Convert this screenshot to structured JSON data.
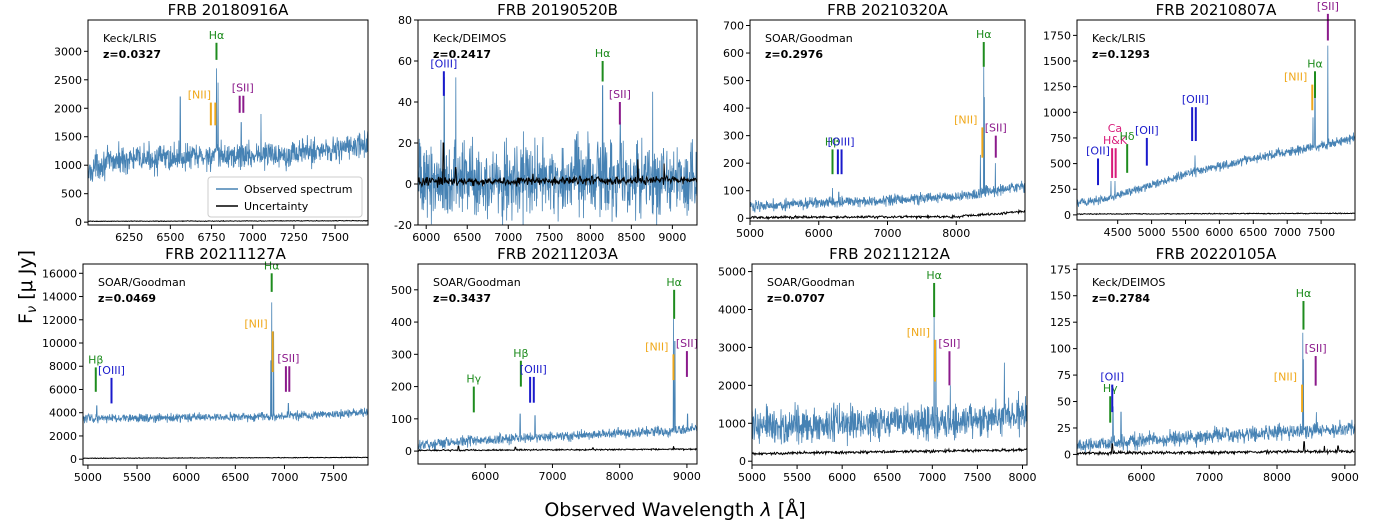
{
  "figure": {
    "ylabel": "F",
    "ylabel_sub": "ν",
    "ylabel_unit": " [μ Jy]",
    "xlabel_main": "Observed Wavelength ",
    "xlabel_sym": "λ",
    "xlabel_unit": " [Å]"
  },
  "legend": {
    "observed": "Observed spectrum",
    "uncertainty": "Uncertainty"
  },
  "colors": {
    "spectrum": "#4682b4",
    "uncertainty": "#000000",
    "balmer": "#1e8c1e",
    "nii": "#f0a81a",
    "sii": "#8b1a8b",
    "oiii": "#1a1acc",
    "cahk": "#d81b7a"
  },
  "chart_data": [
    {
      "type": "line",
      "title": "FRB 20180916A",
      "instrument": "Keck/LRIS",
      "redshift": "z=0.0327",
      "xlim": [
        6000,
        7700
      ],
      "ylim": [
        -50,
        3550
      ],
      "xticks": [
        6250,
        6500,
        6750,
        7000,
        7250,
        7500
      ],
      "yticks": [
        0,
        500,
        1000,
        1500,
        2000,
        2500,
        3000
      ],
      "legend_position": "lower-right",
      "spectrum": {
        "baseline": [
          [
            6000,
            850
          ],
          [
            6050,
            1000
          ],
          [
            6200,
            1100
          ],
          [
            7200,
            1200
          ],
          [
            7700,
            1350
          ]
        ],
        "noise": 170,
        "peaks": [
          [
            6560,
            2200
          ],
          [
            6780,
            2700
          ],
          [
            6790,
            2450
          ],
          [
            6930,
            1750
          ],
          [
            7050,
            1900
          ]
        ]
      },
      "uncertainty": {
        "baseline": [
          [
            6000,
            15
          ],
          [
            7700,
            25
          ]
        ],
        "noise": 4,
        "peaks": []
      },
      "lines": [
        {
          "label": "Hα",
          "color": "balmer",
          "x": [
            6780
          ],
          "y": [
            2850,
            3150
          ]
        },
        {
          "label": "[NII]",
          "color": "nii",
          "x": [
            6755,
            6800
          ],
          "y": [
            1700,
            2100
          ],
          "label_side": "left"
        },
        {
          "label": "[SII]",
          "color": "sii",
          "x": [
            6930,
            6950
          ],
          "y": [
            1920,
            2220
          ]
        }
      ]
    },
    {
      "type": "line",
      "title": "FRB 20190520B",
      "instrument": "Keck/DEIMOS",
      "redshift": "z=0.2417",
      "xlim": [
        5900,
        9300
      ],
      "ylim": [
        -20,
        80
      ],
      "xticks": [
        6000,
        6500,
        7000,
        7500,
        8000,
        8500,
        9000
      ],
      "yticks": [
        -20,
        0,
        20,
        40,
        60,
        80
      ],
      "spectrum": {
        "baseline": [
          [
            5900,
            2
          ],
          [
            9300,
            3
          ]
        ],
        "noise": 13,
        "peaks": [
          [
            6220,
            52
          ],
          [
            6360,
            52
          ],
          [
            8150,
            48
          ],
          [
            8365,
            30
          ],
          [
            8760,
            45
          ]
        ]
      },
      "uncertainty": {
        "baseline": [
          [
            5900,
            1
          ],
          [
            9300,
            2
          ]
        ],
        "noise": 1.5,
        "peaks": [
          [
            6210,
            20
          ],
          [
            6360,
            8
          ],
          [
            7300,
            5
          ],
          [
            8580,
            12
          ],
          [
            8900,
            10
          ]
        ]
      },
      "lines": [
        {
          "label": "[OIII]",
          "color": "oiii",
          "x": [
            6215
          ],
          "y": [
            43,
            55
          ]
        },
        {
          "label": "Hα",
          "color": "balmer",
          "x": [
            8150
          ],
          "y": [
            50,
            60
          ]
        },
        {
          "label": "[SII]",
          "color": "sii",
          "x": [
            8360
          ],
          "y": [
            29,
            40
          ]
        }
      ]
    },
    {
      "type": "line",
      "title": "FRB 20210320A",
      "instrument": "SOAR/Goodman",
      "redshift": "z=0.2976",
      "xlim": [
        5000,
        9000
      ],
      "ylim": [
        -10,
        720
      ],
      "xticks": [
        5000,
        6000,
        7000,
        8000
      ],
      "yticks": [
        0,
        100,
        200,
        300,
        400,
        500,
        600,
        700
      ],
      "spectrum": {
        "baseline": [
          [
            5000,
            45
          ],
          [
            7000,
            65
          ],
          [
            8000,
            80
          ],
          [
            9000,
            115
          ]
        ],
        "noise": 14,
        "peaks": [
          [
            6200,
            110
          ],
          [
            6290,
            95
          ],
          [
            8350,
            230
          ],
          [
            8400,
            550
          ],
          [
            8410,
            440
          ],
          [
            8570,
            200
          ]
        ]
      },
      "uncertainty": {
        "baseline": [
          [
            5000,
            3
          ],
          [
            8000,
            6
          ],
          [
            8500,
            15
          ],
          [
            9000,
            25
          ]
        ],
        "noise": 3,
        "peaks": []
      },
      "lines": [
        {
          "label": "Hβ",
          "color": "balmer",
          "x": [
            6200
          ],
          "y": [
            160,
            250
          ]
        },
        {
          "label": "[OIII]",
          "color": "oiii",
          "x": [
            6300,
            6350
          ],
          "y": [
            160,
            250
          ]
        },
        {
          "label": "[NII]",
          "color": "nii",
          "x": [
            8380
          ],
          "y": [
            220,
            330
          ],
          "label_side": "left"
        },
        {
          "label": "Hα",
          "color": "balmer",
          "x": [
            8400
          ],
          "y": [
            550,
            640
          ]
        },
        {
          "label": "[SII]",
          "color": "sii",
          "x": [
            8575
          ],
          "y": [
            220,
            300
          ]
        }
      ]
    },
    {
      "type": "line",
      "title": "FRB 20210807A",
      "instrument": "Keck/LRIS",
      "redshift": "z=0.1293",
      "xlim": [
        3900,
        8000
      ],
      "ylim": [
        -50,
        1900
      ],
      "xticks": [
        4500,
        5000,
        5500,
        6000,
        6500,
        7000,
        7500
      ],
      "yticks": [
        0,
        250,
        500,
        750,
        1000,
        1250,
        1500,
        1750
      ],
      "spectrum": {
        "baseline": [
          [
            3900,
            120
          ],
          [
            4300,
            150
          ],
          [
            4800,
            250
          ],
          [
            5500,
            400
          ],
          [
            6500,
            550
          ],
          [
            7300,
            650
          ],
          [
            8000,
            750
          ]
        ],
        "noise": 32,
        "peaks": [
          [
            4400,
            330
          ],
          [
            4460,
            330
          ],
          [
            5640,
            580
          ],
          [
            7380,
            950
          ],
          [
            7410,
            1200
          ],
          [
            7600,
            1650
          ]
        ]
      },
      "uncertainty": {
        "baseline": [
          [
            3900,
            8
          ],
          [
            8000,
            15
          ]
        ],
        "noise": 3,
        "peaks": []
      },
      "lines": [
        {
          "label": "[OII]",
          "color": "oiii",
          "x": [
            4210
          ],
          "y": [
            290,
            550
          ]
        },
        {
          "label": "Ca\nH&K",
          "color": "cahk",
          "x": [
            4440,
            4480
          ],
          "y": [
            360,
            650
          ]
        },
        {
          "label": "Hδ",
          "color": "balmer",
          "x": [
            4640
          ],
          "y": [
            410,
            690
          ]
        },
        {
          "label": "[OII]",
          "color": "oiii",
          "x": [
            4930
          ],
          "y": [
            480,
            750
          ]
        },
        {
          "label": "[OIII]",
          "color": "oiii",
          "x": [
            5620,
            5670
          ],
          "y": [
            720,
            1050
          ]
        },
        {
          "label": "[NII]",
          "color": "nii",
          "x": [
            7370
          ],
          "y": [
            1020,
            1270
          ],
          "label_side": "left"
        },
        {
          "label": "Hα",
          "color": "balmer",
          "x": [
            7410
          ],
          "y": [
            1140,
            1400
          ]
        },
        {
          "label": "[SII]",
          "color": "sii",
          "x": [
            7600
          ],
          "y": [
            1700,
            1960
          ]
        }
      ]
    },
    {
      "type": "line",
      "title": "FRB 20211127A",
      "instrument": "SOAR/Goodman",
      "redshift": "z=0.0469",
      "xlim": [
        4950,
        7850
      ],
      "ylim": [
        -500,
        16800
      ],
      "xticks": [
        5000,
        5500,
        6000,
        6500,
        7000,
        7500
      ],
      "yticks": [
        0,
        2000,
        4000,
        6000,
        8000,
        10000,
        12000,
        14000,
        16000
      ],
      "spectrum": {
        "baseline": [
          [
            4950,
            3500
          ],
          [
            6000,
            3600
          ],
          [
            7000,
            3700
          ],
          [
            7850,
            4000
          ]
        ],
        "noise": 260,
        "peaks": [
          [
            5090,
            4600
          ],
          [
            6860,
            8500
          ],
          [
            6870,
            13500
          ],
          [
            6890,
            11000
          ],
          [
            7040,
            4800
          ]
        ]
      },
      "uncertainty": {
        "baseline": [
          [
            4950,
            80
          ],
          [
            7850,
            150
          ]
        ],
        "noise": 20,
        "peaks": []
      },
      "lines": [
        {
          "label": "Hβ",
          "color": "balmer",
          "x": [
            5080
          ],
          "y": [
            5800,
            7900
          ]
        },
        {
          "label": "[OIII]",
          "color": "oiii",
          "x": [
            5240
          ],
          "y": [
            4800,
            7000
          ]
        },
        {
          "label": "[NII]",
          "color": "nii",
          "x": [
            6880
          ],
          "y": [
            7500,
            11000
          ],
          "label_side": "left"
        },
        {
          "label": "Hα",
          "color": "balmer",
          "x": [
            6870
          ],
          "y": [
            14400,
            16000
          ]
        },
        {
          "label": "[SII]",
          "color": "sii",
          "x": [
            7030,
            7050
          ],
          "y": [
            5800,
            8000
          ]
        }
      ]
    },
    {
      "type": "line",
      "title": "FRB 20211203A",
      "instrument": "SOAR/Goodman",
      "redshift": "z=0.3437",
      "xlim": [
        5000,
        9150
      ],
      "ylim": [
        -40,
        580
      ],
      "xticks": [
        6000,
        7000,
        8000,
        9000
      ],
      "yticks": [
        0,
        100,
        200,
        300,
        400,
        500
      ],
      "spectrum": {
        "baseline": [
          [
            5000,
            20
          ],
          [
            6000,
            35
          ],
          [
            7000,
            45
          ],
          [
            8000,
            55
          ],
          [
            9000,
            65
          ],
          [
            9150,
            70
          ]
        ],
        "noise": 11,
        "peaks": [
          [
            6520,
            115
          ],
          [
            6740,
            110
          ],
          [
            8800,
            410
          ],
          [
            8820,
            340
          ],
          [
            9010,
            115
          ]
        ]
      },
      "uncertainty": {
        "baseline": [
          [
            5000,
            2
          ],
          [
            9150,
            6
          ]
        ],
        "noise": 1.5,
        "peaks": [
          [
            5600,
            15
          ],
          [
            6450,
            12
          ],
          [
            7600,
            10
          ],
          [
            8800,
            15
          ]
        ]
      },
      "lines": [
        {
          "label": "Hγ",
          "color": "balmer",
          "x": [
            5830
          ],
          "y": [
            120,
            200
          ]
        },
        {
          "label": "Hβ",
          "color": "balmer",
          "x": [
            6530
          ],
          "y": [
            200,
            280
          ]
        },
        {
          "label": "[OIII]",
          "color": "oiii",
          "x": [
            6690,
            6740
          ],
          "y": [
            150,
            230
          ]
        },
        {
          "label": "[NII]",
          "color": "nii",
          "x": [
            8800
          ],
          "y": [
            220,
            300
          ],
          "label_side": "left"
        },
        {
          "label": "Hα",
          "color": "balmer",
          "x": [
            8810
          ],
          "y": [
            410,
            500
          ]
        },
        {
          "label": "[SII]",
          "color": "sii",
          "x": [
            9000
          ],
          "y": [
            230,
            310
          ]
        }
      ]
    },
    {
      "type": "line",
      "title": "FRB 20211212A",
      "instrument": "SOAR/Goodman",
      "redshift": "z=0.0707",
      "xlim": [
        5000,
        8050
      ],
      "ylim": [
        -100,
        5200
      ],
      "xticks": [
        5000,
        5500,
        6000,
        6500,
        7000,
        7500,
        8000
      ],
      "yticks": [
        0,
        1000,
        2000,
        3000,
        4000,
        5000
      ],
      "spectrum": {
        "baseline": [
          [
            5000,
            900
          ],
          [
            6500,
            1000
          ],
          [
            7500,
            1100
          ],
          [
            8050,
            1250
          ]
        ],
        "noise": 330,
        "peaks": [
          [
            7020,
            3900
          ],
          [
            7040,
            3200
          ],
          [
            7200,
            2000
          ],
          [
            7800,
            2600
          ]
        ]
      },
      "uncertainty": {
        "baseline": [
          [
            5000,
            200
          ],
          [
            8050,
            300
          ]
        ],
        "noise": 25,
        "peaks": []
      },
      "lines": [
        {
          "label": "[NII]",
          "color": "nii",
          "x": [
            7030
          ],
          "y": [
            2100,
            3200
          ],
          "label_side": "left"
        },
        {
          "label": "Hα",
          "color": "balmer",
          "x": [
            7020
          ],
          "y": [
            3800,
            4700
          ]
        },
        {
          "label": "[SII]",
          "color": "sii",
          "x": [
            7190
          ],
          "y": [
            2000,
            2900
          ]
        }
      ]
    },
    {
      "type": "line",
      "title": "FRB 20220105A",
      "instrument": "Keck/DEIMOS",
      "redshift": "z=0.2784",
      "xlim": [
        5050,
        9150
      ],
      "ylim": [
        -10,
        180
      ],
      "xticks": [
        6000,
        7000,
        8000,
        9000
      ],
      "yticks": [
        0,
        25,
        50,
        75,
        100,
        125,
        150,
        175
      ],
      "spectrum": {
        "baseline": [
          [
            5050,
            8
          ],
          [
            6000,
            13
          ],
          [
            7000,
            17
          ],
          [
            8000,
            21
          ],
          [
            9150,
            25
          ]
        ],
        "noise": 5,
        "peaks": [
          [
            5580,
            45
          ],
          [
            5700,
            40
          ],
          [
            8380,
            115
          ],
          [
            8390,
            90
          ],
          [
            8580,
            40
          ]
        ]
      },
      "uncertainty": {
        "baseline": [
          [
            5050,
            1
          ],
          [
            9150,
            3
          ]
        ],
        "noise": 1,
        "peaks": [
          [
            5570,
            10
          ],
          [
            8400,
            12
          ],
          [
            8700,
            8
          ],
          [
            8900,
            8
          ]
        ]
      },
      "lines": [
        {
          "label": "Hγ",
          "color": "balmer",
          "x": [
            5540
          ],
          "y": [
            30,
            55
          ]
        },
        {
          "label": "[OII]",
          "color": "oiii",
          "x": [
            5570
          ],
          "y": [
            40,
            66
          ]
        },
        {
          "label": "[NII]",
          "color": "nii",
          "x": [
            8370
          ],
          "y": [
            40,
            66
          ],
          "label_side": "left"
        },
        {
          "label": "Hα",
          "color": "balmer",
          "x": [
            8390
          ],
          "y": [
            118,
            145
          ]
        },
        {
          "label": "[SII]",
          "color": "sii",
          "x": [
            8570
          ],
          "y": [
            65,
            93
          ]
        }
      ]
    }
  ]
}
